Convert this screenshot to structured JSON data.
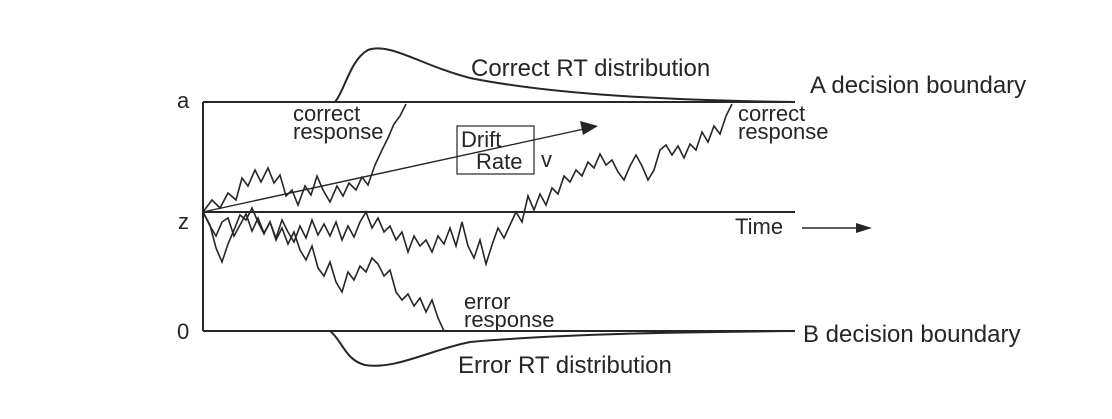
{
  "labels": {
    "correct_rt": "Correct RT distribution",
    "a_boundary": "A decision boundary",
    "b_boundary": "B decision boundary",
    "error_rt": "Error RT distribution",
    "axis_a": "a",
    "axis_z": "z",
    "axis_0": "0",
    "correct_response_left_line1": "correct",
    "correct_response_left_line2": "response",
    "correct_response_right_line1": "correct",
    "correct_response_right_line2": "response",
    "drift_line1": "Drift",
    "drift_line2": "Rate",
    "drift_symbol": "v",
    "time": "Time",
    "error_line1": "error",
    "error_line2": "response"
  },
  "colors": {
    "ink": "#262626",
    "background": "#ffffff"
  }
}
